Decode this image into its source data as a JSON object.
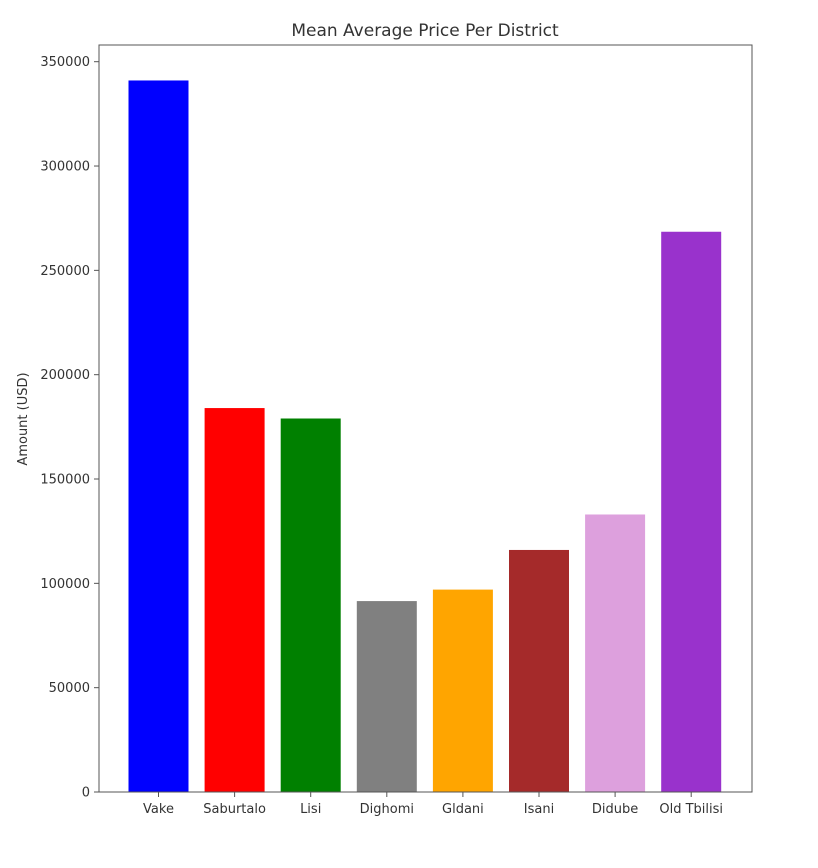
{
  "chart_data": {
    "type": "bar",
    "title": "Mean Average Price Per District",
    "xlabel": "",
    "ylabel": "Amount (USD)",
    "categories": [
      "Vake",
      "Saburtalo",
      "Lisi",
      "Dighomi",
      "Gldani",
      "Isani",
      "Didube",
      "Old Tbilisi"
    ],
    "values": [
      341000,
      184000,
      179000,
      91500,
      97000,
      116000,
      133000,
      268500
    ],
    "colors": [
      "#0000ff",
      "#ff0000",
      "#008000",
      "#808080",
      "#ffa500",
      "#a52a2a",
      "#dda0dd",
      "#9932cc"
    ],
    "ylim": [
      0,
      358000
    ],
    "yticks": [
      0,
      50000,
      100000,
      150000,
      200000,
      250000,
      300000,
      350000
    ],
    "ytick_labels": [
      "0",
      "50000",
      "100000",
      "150000",
      "200000",
      "250000",
      "300000",
      "350000"
    ],
    "grid": false,
    "legend": false
  }
}
